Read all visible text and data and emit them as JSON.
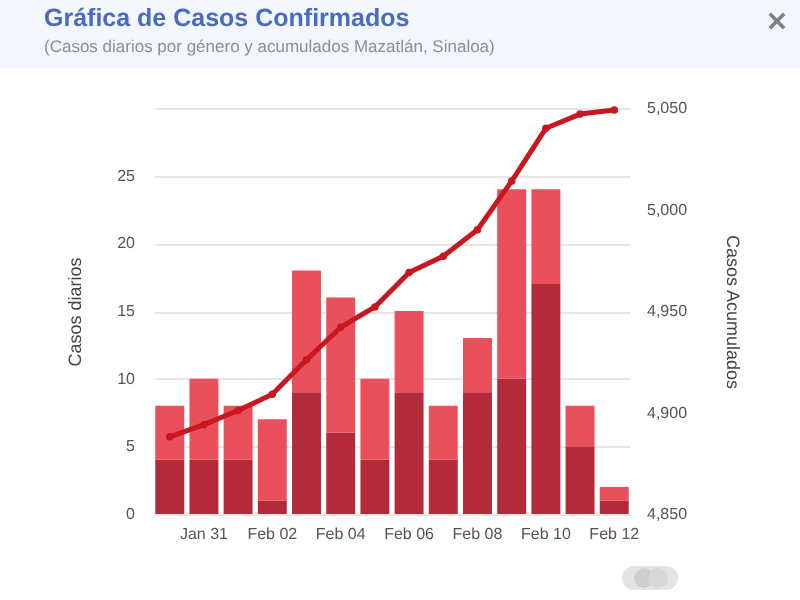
{
  "chart_data": {
    "type": "bar",
    "title": "Gráfica de Casos Confirmados",
    "subtitle": "(Casos diarios por género y acumulados Mazatlán, Sinaloa)",
    "ylabel": "Casos diarios",
    "y2label": "Casos Acumulados",
    "categories": [
      null,
      "Jan 31",
      null,
      "Feb 02",
      null,
      "Feb 04",
      null,
      "Feb 06",
      null,
      "Feb 08",
      null,
      "Feb 10",
      null,
      "Feb 12"
    ],
    "series": [
      {
        "type": "bar",
        "color": "#b32a3b",
        "values": [
          4,
          4,
          4,
          1,
          9,
          6,
          4,
          9,
          4,
          9,
          10,
          17,
          5,
          1
        ]
      },
      {
        "type": "bar",
        "color": "#e9505b",
        "values": [
          4,
          6,
          4,
          6,
          9,
          10,
          6,
          6,
          4,
          4,
          14,
          7,
          3,
          1
        ]
      },
      {
        "type": "line",
        "axis": "y2",
        "color": "#c8171e",
        "values": [
          4888,
          4894,
          4901,
          4909,
          4926,
          4942,
          4952,
          4969,
          4977,
          4990,
          5014,
          5040,
          5047,
          5049
        ]
      }
    ],
    "stacked": true,
    "ylim": [
      0,
      30
    ],
    "yticks": [
      0,
      5,
      10,
      15,
      20,
      25,
      {
        "value": 30,
        "label": null
      }
    ],
    "y2lim": [
      4850,
      5050
    ],
    "y2ticks": [
      {
        "value": 4850,
        "label": "4,850"
      },
      {
        "value": 4900,
        "label": "4,900"
      },
      {
        "value": 4950,
        "label": "4,950"
      },
      {
        "value": 5000,
        "label": "5,000"
      },
      {
        "value": 5050,
        "label": "5,050"
      }
    ],
    "grid": "y",
    "marker": "circle",
    "line_style": "solid"
  }
}
